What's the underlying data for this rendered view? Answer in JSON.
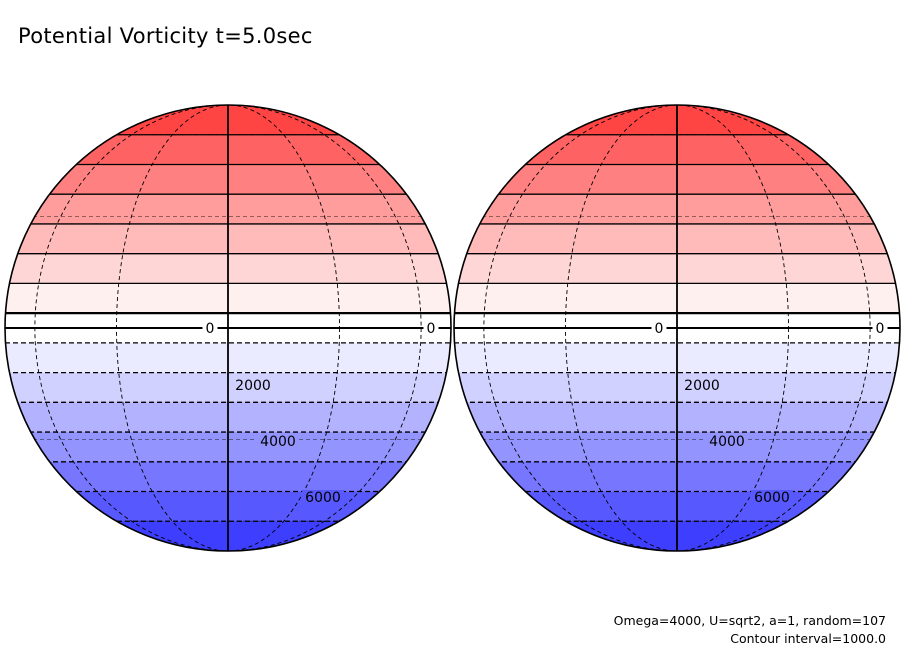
{
  "title": "Potential Vorticity t=5.0sec",
  "notes": {
    "params": "Omega=4000, U=sqrt2, a=1, random=107",
    "contour_interval": "Contour interval=1000.0"
  },
  "chart_data": {
    "type": "heatmap",
    "projection": "orthographic (two hemispheres)",
    "title": "Potential Vorticity t=5.0sec",
    "contour_interval": 1000.0,
    "color_scale": {
      "positive": "#ff3b3b",
      "zero": "#ffffff",
      "negative": "#3b3bff"
    },
    "bands": [
      {
        "color": "#ff4444"
      },
      {
        "color": "#ff6262"
      },
      {
        "color": "#ff8080"
      },
      {
        "color": "#ff9d9d"
      },
      {
        "color": "#ffbaba"
      },
      {
        "color": "#ffd6d6"
      },
      {
        "color": "#fff0f0"
      },
      {
        "color": "#ffffff"
      },
      {
        "color": "#ebebff"
      },
      {
        "color": "#d1d1ff"
      },
      {
        "color": "#b2b2ff"
      },
      {
        "color": "#9494ff"
      },
      {
        "color": "#7676ff"
      },
      {
        "color": "#5858ff"
      },
      {
        "color": "#3e3eff"
      }
    ],
    "contour_labels": [
      {
        "text": "0",
        "row": 0,
        "col": "right"
      },
      {
        "text": "0",
        "row": 0,
        "col": "edge"
      },
      {
        "text": "2000",
        "row": 1,
        "col": "center"
      },
      {
        "text": "4000",
        "row": 2,
        "col": "center"
      },
      {
        "text": "6000",
        "row": 3,
        "col": "center"
      }
    ]
  }
}
